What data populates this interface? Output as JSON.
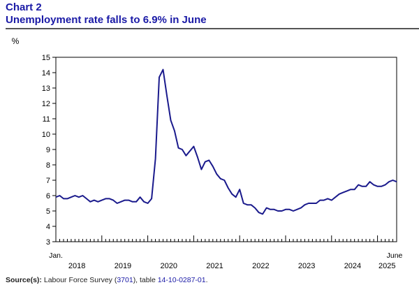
{
  "header": {
    "chart_number": "Chart 2",
    "title": "Unemployment rate falls to 6.9% in June"
  },
  "source": {
    "label": "Source(s):",
    "text_before": "Labour Force Survey (",
    "survey_link": "3701",
    "text_mid": "), table ",
    "table_link": "14-10-0287-01",
    "text_after": "."
  },
  "colors": {
    "line": "#1a1a8c",
    "title": "#1a1aa6",
    "axis": "#000000"
  },
  "chart_data": {
    "type": "line",
    "title": "Unemployment rate falls to 6.9% in June",
    "ylabel": "%",
    "xlabel": "",
    "ylim": [
      3,
      15
    ],
    "yticks": [
      3,
      4,
      5,
      6,
      7,
      8,
      9,
      10,
      11,
      12,
      13,
      14,
      15
    ],
    "start_month_label": "Jan.",
    "end_month_label": "June",
    "year_labels": [
      "2018",
      "2019",
      "2020",
      "2021",
      "2022",
      "2023",
      "2024",
      "2025"
    ],
    "series": [
      {
        "name": "Unemployment rate",
        "start": "2018-01",
        "end": "2025-06",
        "values": [
          5.9,
          6.0,
          5.8,
          5.8,
          5.9,
          6.0,
          5.9,
          6.0,
          5.8,
          5.6,
          5.7,
          5.6,
          5.7,
          5.8,
          5.8,
          5.7,
          5.5,
          5.6,
          5.7,
          5.7,
          5.6,
          5.6,
          5.9,
          5.6,
          5.5,
          5.8,
          8.4,
          13.7,
          14.2,
          12.5,
          10.9,
          10.2,
          9.1,
          9.0,
          8.6,
          8.9,
          9.2,
          8.5,
          7.7,
          8.2,
          8.3,
          7.9,
          7.4,
          7.1,
          7.0,
          6.5,
          6.1,
          5.9,
          6.4,
          5.5,
          5.4,
          5.4,
          5.2,
          4.9,
          4.8,
          5.2,
          5.1,
          5.1,
          5.0,
          5.0,
          5.1,
          5.1,
          5.0,
          5.1,
          5.2,
          5.4,
          5.5,
          5.5,
          5.5,
          5.7,
          5.7,
          5.8,
          5.7,
          5.9,
          6.1,
          6.2,
          6.3,
          6.4,
          6.4,
          6.7,
          6.6,
          6.6,
          6.9,
          6.7,
          6.6,
          6.6,
          6.7,
          6.9,
          7.0,
          6.9
        ]
      }
    ]
  }
}
